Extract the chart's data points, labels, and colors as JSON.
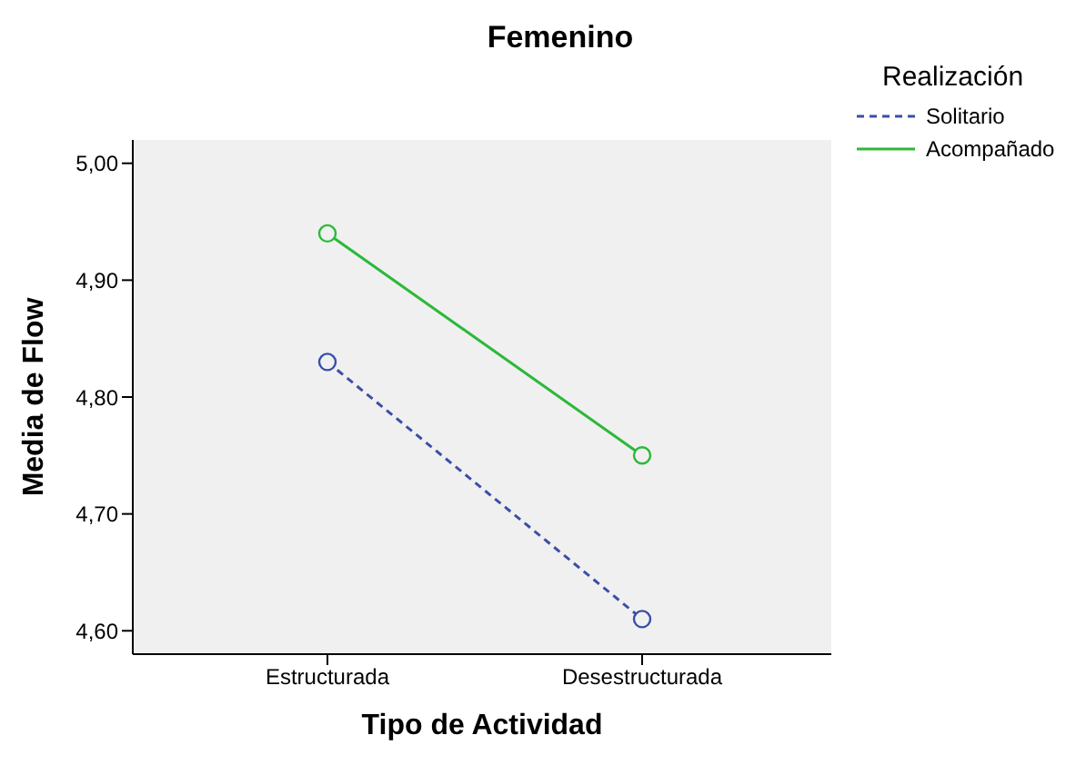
{
  "chart_data": {
    "type": "line",
    "title": "Femenino",
    "xlabel": "Tipo de Actividad",
    "ylabel": "Media de Flow",
    "legend_title": "Realización",
    "categories": [
      "Estructurada",
      "Desestructurada"
    ],
    "series": [
      {
        "name": "Solitario",
        "color": "#3a4fa8",
        "values": [
          4.83,
          4.61
        ],
        "line_style": "dashed"
      },
      {
        "name": "Acompañado",
        "color": "#2db83a",
        "values": [
          4.94,
          4.75
        ],
        "line_style": "solid"
      }
    ],
    "ylim": [
      4.58,
      5.02
    ],
    "yticks": [
      {
        "value": 4.6,
        "label": "4,60"
      },
      {
        "value": 4.7,
        "label": "4,70"
      },
      {
        "value": 4.8,
        "label": "4,80"
      },
      {
        "value": 4.9,
        "label": "4,90"
      },
      {
        "value": 5,
        "label": "5,00"
      }
    ],
    "grid": false,
    "legend": "right",
    "marker": "circle"
  }
}
